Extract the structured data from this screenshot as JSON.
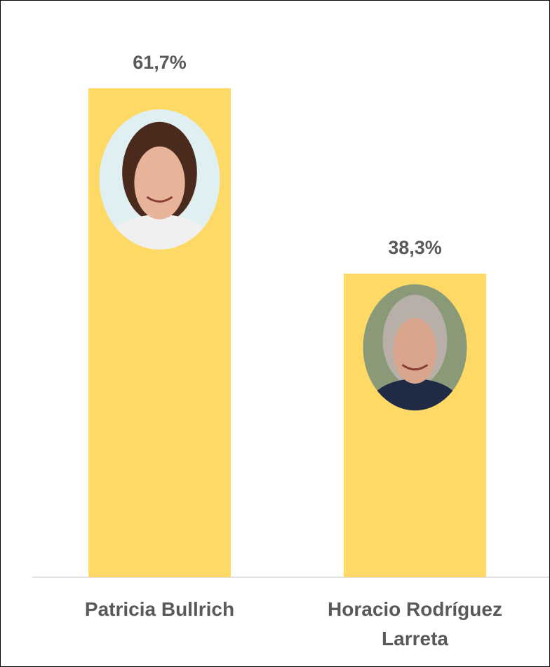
{
  "chart_data": {
    "type": "bar",
    "categories": [
      "Patricia Bullrich",
      "Horacio Rodríguez Larreta"
    ],
    "values": [
      61.7,
      38.3
    ],
    "value_labels": [
      "61,7%",
      "38,3%"
    ],
    "color": "#ffd966"
  }
}
